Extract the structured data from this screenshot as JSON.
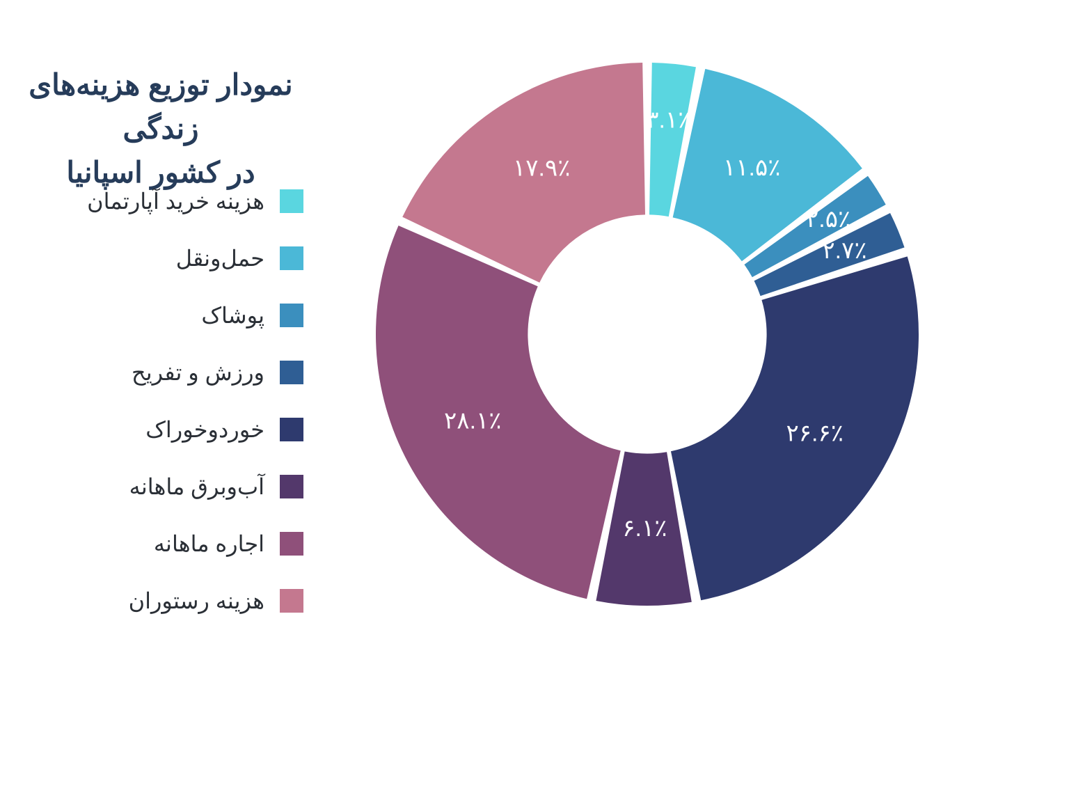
{
  "title_line1": "نمودار توزیع هزینه‌های زندگی",
  "title_line2": "در کشور اسپانیا",
  "chart": {
    "type": "donut",
    "background_color": "#ffffff",
    "inner_radius_ratio": 0.44,
    "outer_radius": 390,
    "start_angle_deg": 0,
    "direction": "clockwise",
    "label_color": "#ffffff",
    "label_fontsize": 34,
    "title_color": "#263c5a",
    "title_fontsize": 42,
    "legend_text_color": "#2a2f36",
    "legend_fontsize": 32,
    "slices": [
      {
        "label": "هزینه خرید آپارتمان",
        "value": 3.1,
        "display": "۳.۱٪",
        "color": "#5ad6e0"
      },
      {
        "label": "حمل‌ونقل",
        "value": 11.5,
        "display": "۱۱.۵٪",
        "color": "#4bb8d7"
      },
      {
        "label": "پوشاک",
        "value": 2.5,
        "display": "۲.۵٪",
        "color": "#3b8fbe"
      },
      {
        "label": "ورزش و تفریح",
        "value": 2.7,
        "display": "۲.۷٪",
        "color": "#2f5e94"
      },
      {
        "label": "خوردوخوراک",
        "value": 26.6,
        "display": "۲۶.۶٪",
        "color": "#2e3a6e"
      },
      {
        "label": "آب‌وبرق ماهانه",
        "value": 6.1,
        "display": "۶.۱٪",
        "color": "#53386b"
      },
      {
        "label": "اجاره ماهانه",
        "value": 28.1,
        "display": "۲۸.۱٪",
        "color": "#8f507a"
      },
      {
        "label": "هزینه رستوران",
        "value": 17.9,
        "display": "۱۷.۹٪",
        "color": "#c4788f"
      }
    ]
  }
}
